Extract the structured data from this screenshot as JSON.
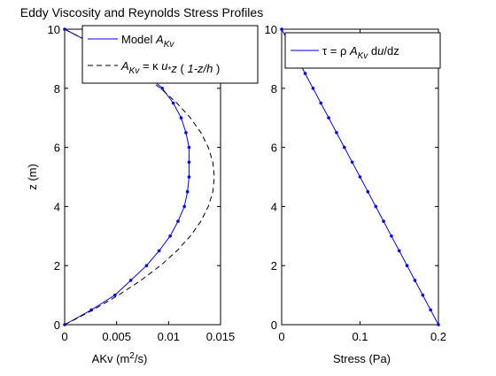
{
  "title": "Eddy Viscosity and Reynolds Stress Profiles",
  "chart_data": [
    {
      "type": "line",
      "xlabel_main": "AKv (m",
      "xlabel_sup": "2",
      "xlabel_tail": "/s)",
      "ylabel": "z (m)",
      "xlim": [
        0,
        0.015
      ],
      "ylim": [
        0,
        10
      ],
      "xticks": [
        0,
        0.005,
        0.01,
        0.015
      ],
      "xtick_labels": [
        "0",
        "0.005",
        "0.01",
        "0.015"
      ],
      "yticks": [
        0,
        2,
        4,
        6,
        8,
        10
      ],
      "ytick_labels": [
        "0",
        "2",
        "4",
        "6",
        "8",
        "10"
      ],
      "legend_location": "top-right",
      "series": [
        {
          "name_text": "Model A",
          "name_sub": "Kv",
          "color": "#0000ff",
          "style": "solid",
          "markers": true,
          "z": [
            0,
            0.5,
            1,
            1.5,
            2,
            2.5,
            3,
            3.5,
            4,
            4.5,
            5,
            5.5,
            6,
            6.5,
            7,
            7.5,
            8,
            8.5,
            9,
            9.5,
            10
          ],
          "values": [
            0.0,
            0.00257,
            0.00484,
            0.00636,
            0.00788,
            0.00909,
            0.01015,
            0.01091,
            0.01152,
            0.01182,
            0.01197,
            0.01197,
            0.01197,
            0.01167,
            0.01121,
            0.01045,
            0.00939,
            0.00788,
            0.00576,
            0.00273,
            0.0
          ]
        },
        {
          "name_parts": [
            "A",
            "Kv",
            " = κ u",
            "*",
            "z ( 1-z/h )"
          ],
          "color": "#000000",
          "style": "dashed",
          "markers": false,
          "z": [
            0,
            0.5,
            1,
            1.5,
            2,
            2.5,
            3,
            3.5,
            4,
            4.5,
            5,
            5.5,
            6,
            6.5,
            7,
            7.5,
            8,
            8.5,
            9,
            9.5,
            10
          ],
          "values": [
            0.0,
            0.00274,
            0.00518,
            0.00734,
            0.00922,
            0.0108,
            0.0121,
            0.01311,
            0.01382,
            0.01426,
            0.0144,
            0.01426,
            0.01382,
            0.01311,
            0.0121,
            0.0108,
            0.00922,
            0.00734,
            0.00518,
            0.00274,
            0.0
          ]
        }
      ]
    },
    {
      "type": "line",
      "xlabel": "Stress (Pa)",
      "xlim": [
        0,
        0.2
      ],
      "ylim": [
        0,
        10
      ],
      "xticks": [
        0,
        0.1,
        0.2
      ],
      "xtick_labels": [
        "0",
        "0.1",
        "0.2"
      ],
      "yticks": [
        0,
        2,
        4,
        6,
        8,
        10
      ],
      "ytick_labels": [
        "0",
        "2",
        "4",
        "6",
        "8",
        "10"
      ],
      "legend_location": "top-right",
      "series": [
        {
          "name_parts": [
            "τ = ρ A",
            "Kv",
            " du/dz"
          ],
          "color": "#0000ff",
          "style": "solid",
          "markers": true,
          "z": [
            0,
            0.5,
            1,
            1.5,
            2,
            2.5,
            3,
            3.5,
            4,
            4.5,
            5,
            5.5,
            6,
            6.5,
            7,
            7.5,
            8,
            8.5,
            9,
            9.5,
            10
          ],
          "values": [
            0.2,
            0.19,
            0.18,
            0.17,
            0.16,
            0.15,
            0.14,
            0.13,
            0.12,
            0.11,
            0.1,
            0.09,
            0.08,
            0.07,
            0.06,
            0.05,
            0.04,
            0.03,
            0.02,
            0.01,
            0.0
          ]
        }
      ]
    }
  ]
}
